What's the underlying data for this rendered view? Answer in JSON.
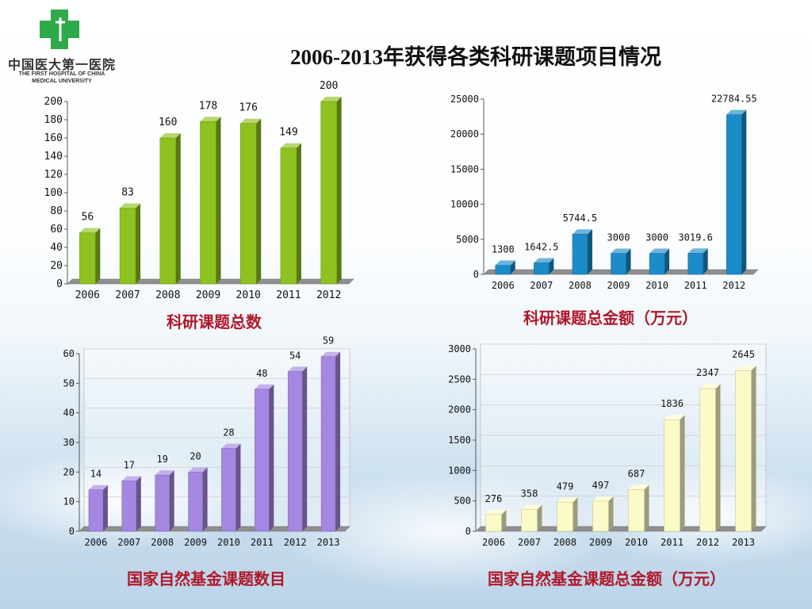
{
  "header": {
    "title": "2006-2013年获得各类科研课题项目情况",
    "logo_cn": "中国医大第一医院",
    "logo_en_line1": "THE FIRST HOSPITAL OF CHINA",
    "logo_en_line2": "MEDICAL UNIVERSITY",
    "logo_color": "#2eaa4a"
  },
  "chart_data": [
    {
      "type": "bar",
      "caption": "科研课题总数",
      "categories": [
        "2006",
        "2007",
        "2008",
        "2009",
        "2010",
        "2011",
        "2012"
      ],
      "values": [
        56,
        83,
        160,
        178,
        176,
        149,
        200
      ],
      "value_labels": [
        "56",
        "83",
        "160",
        "178",
        "176",
        "149",
        "200"
      ],
      "ylim": [
        0,
        200
      ],
      "yticks": [
        "0",
        "20",
        "40",
        "60",
        "80",
        "100",
        "120",
        "140",
        "160",
        "180",
        "200"
      ],
      "grid": false,
      "color": "#8dc21f"
    },
    {
      "type": "bar",
      "caption": "科研课题总金额（万元）",
      "categories": [
        "2006",
        "2007",
        "2008",
        "2009",
        "2010",
        "2011",
        "2012"
      ],
      "values": [
        1300,
        1642.5,
        5744.5,
        3000,
        3000,
        3019.6,
        22784.55
      ],
      "value_labels": [
        "1300",
        "1642.5",
        "5744.5",
        "3000",
        "3000",
        "3019.6",
        "22784.55"
      ],
      "ylim": [
        0,
        25000
      ],
      "yticks": [
        "0",
        "5000",
        "10000",
        "15000",
        "20000",
        "25000"
      ],
      "grid": false,
      "color": "#1b8cc8"
    },
    {
      "type": "bar",
      "caption": "国家自然基金课题数目",
      "categories": [
        "2006",
        "2007",
        "2008",
        "2009",
        "2010",
        "2011",
        "2012",
        "2013"
      ],
      "values": [
        14,
        17,
        19,
        20,
        28,
        48,
        54,
        59
      ],
      "value_labels": [
        "14",
        "17",
        "19",
        "20",
        "28",
        "48",
        "54",
        "59"
      ],
      "ylim": [
        0,
        60
      ],
      "yticks": [
        "0",
        "10",
        "20",
        "30",
        "40",
        "50",
        "60"
      ],
      "grid": true,
      "color": "#a487e0"
    },
    {
      "type": "bar",
      "caption": "国家自然基金课题总金额（万元）",
      "categories": [
        "2006",
        "2007",
        "2008",
        "2009",
        "2010",
        "2011",
        "2012",
        "2013"
      ],
      "values": [
        276,
        358,
        479,
        497,
        687,
        1836,
        2347,
        2645
      ],
      "value_labels": [
        "276",
        "358",
        "479",
        "497",
        "687",
        "1836",
        "2347",
        "2645"
      ],
      "ylim": [
        0,
        3000
      ],
      "yticks": [
        "0",
        "500",
        "1000",
        "1500",
        "2000",
        "2500",
        "3000"
      ],
      "grid": true,
      "color": "#fcfbc8"
    }
  ]
}
